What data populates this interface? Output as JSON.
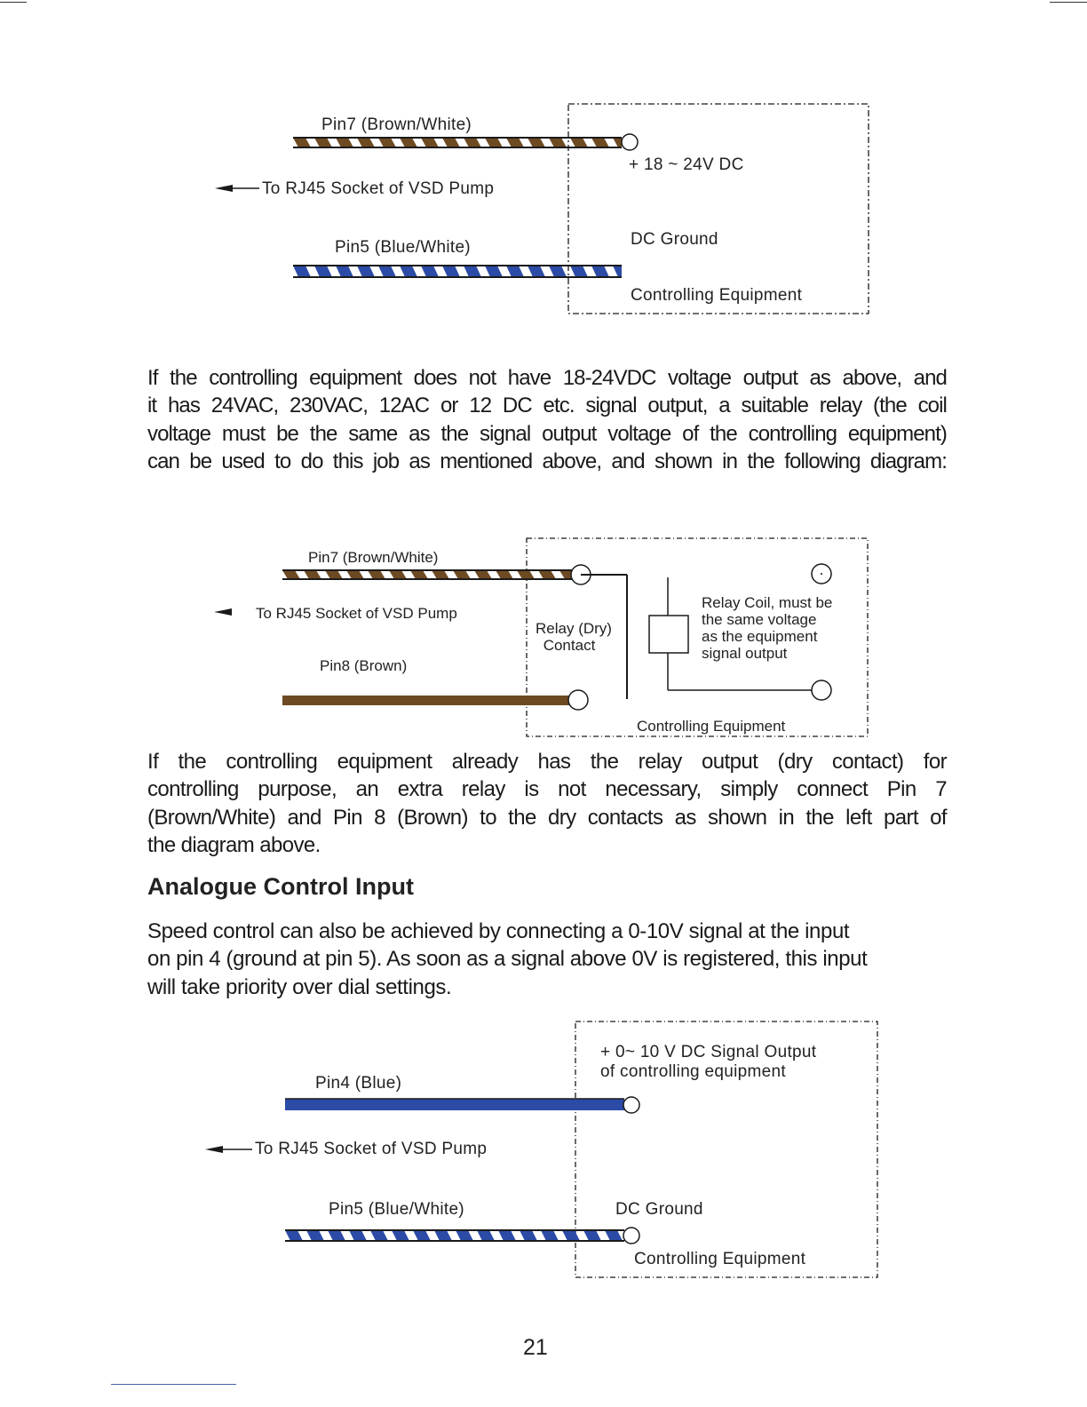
{
  "colors": {
    "brown": "#6e4a22",
    "blue": "#2c4ba6",
    "line": "#1a1a1a"
  },
  "diagram1": {
    "pin7": "Pin7 (Brown/White)",
    "to_socket": "To RJ45 Socket of VSD Pump",
    "pin5": "Pin5 (Blue/White)",
    "supply": "+ 18 ~ 24V DC",
    "ground": "DC Ground",
    "equipment": "Controlling Equipment"
  },
  "paragraph1": [
    "If the controlling equipment does not have 18-24VDC voltage output as above, and",
    "it has 24VAC, 230VAC, 12AC or 12 DC etc. signal output, a suitable relay (the coil",
    "voltage must be the same as the signal output voltage of the controlling equipment)",
    "can be used to do this job as mentioned above, and shown in the following diagram:"
  ],
  "diagram2": {
    "pin7": "Pin7 (Brown/White)",
    "to_socket": "To RJ45 Socket of VSD Pump",
    "pin8": "Pin8 (Brown)",
    "relay_contact": [
      "Relay (Dry)",
      "Contact"
    ],
    "relay_coil": [
      "Relay Coil, must be",
      "the same voltage",
      "as the equipment",
      "signal output"
    ],
    "equipment": "Controlling Equipment"
  },
  "paragraph2": [
    "If the controlling equipment already has the relay output (dry contact) for",
    "controlling purpose, an extra relay is not necessary, simply connect Pin 7",
    "(Brown/White) and Pin 8 (Brown) to the dry contacts as shown in the left part of",
    "the diagram above."
  ],
  "heading": "Analogue Control Input",
  "paragraph3": [
    "Speed control can also be achieved by connecting a 0-10V signal at the input",
    "on pin 4 (ground at pin 5). As soon as a signal above 0V is registered, this input",
    "will take priority over dial settings."
  ],
  "diagram3": {
    "signal": [
      "+ 0~ 10 V DC Signal Output",
      "of controlling equipment"
    ],
    "pin4": "Pin4 (Blue)",
    "to_socket": "To RJ45 Socket of VSD Pump",
    "pin5": "Pin5 (Blue/White)",
    "ground": "DC Ground",
    "equipment": "Controlling Equipment"
  },
  "page_number": "21"
}
